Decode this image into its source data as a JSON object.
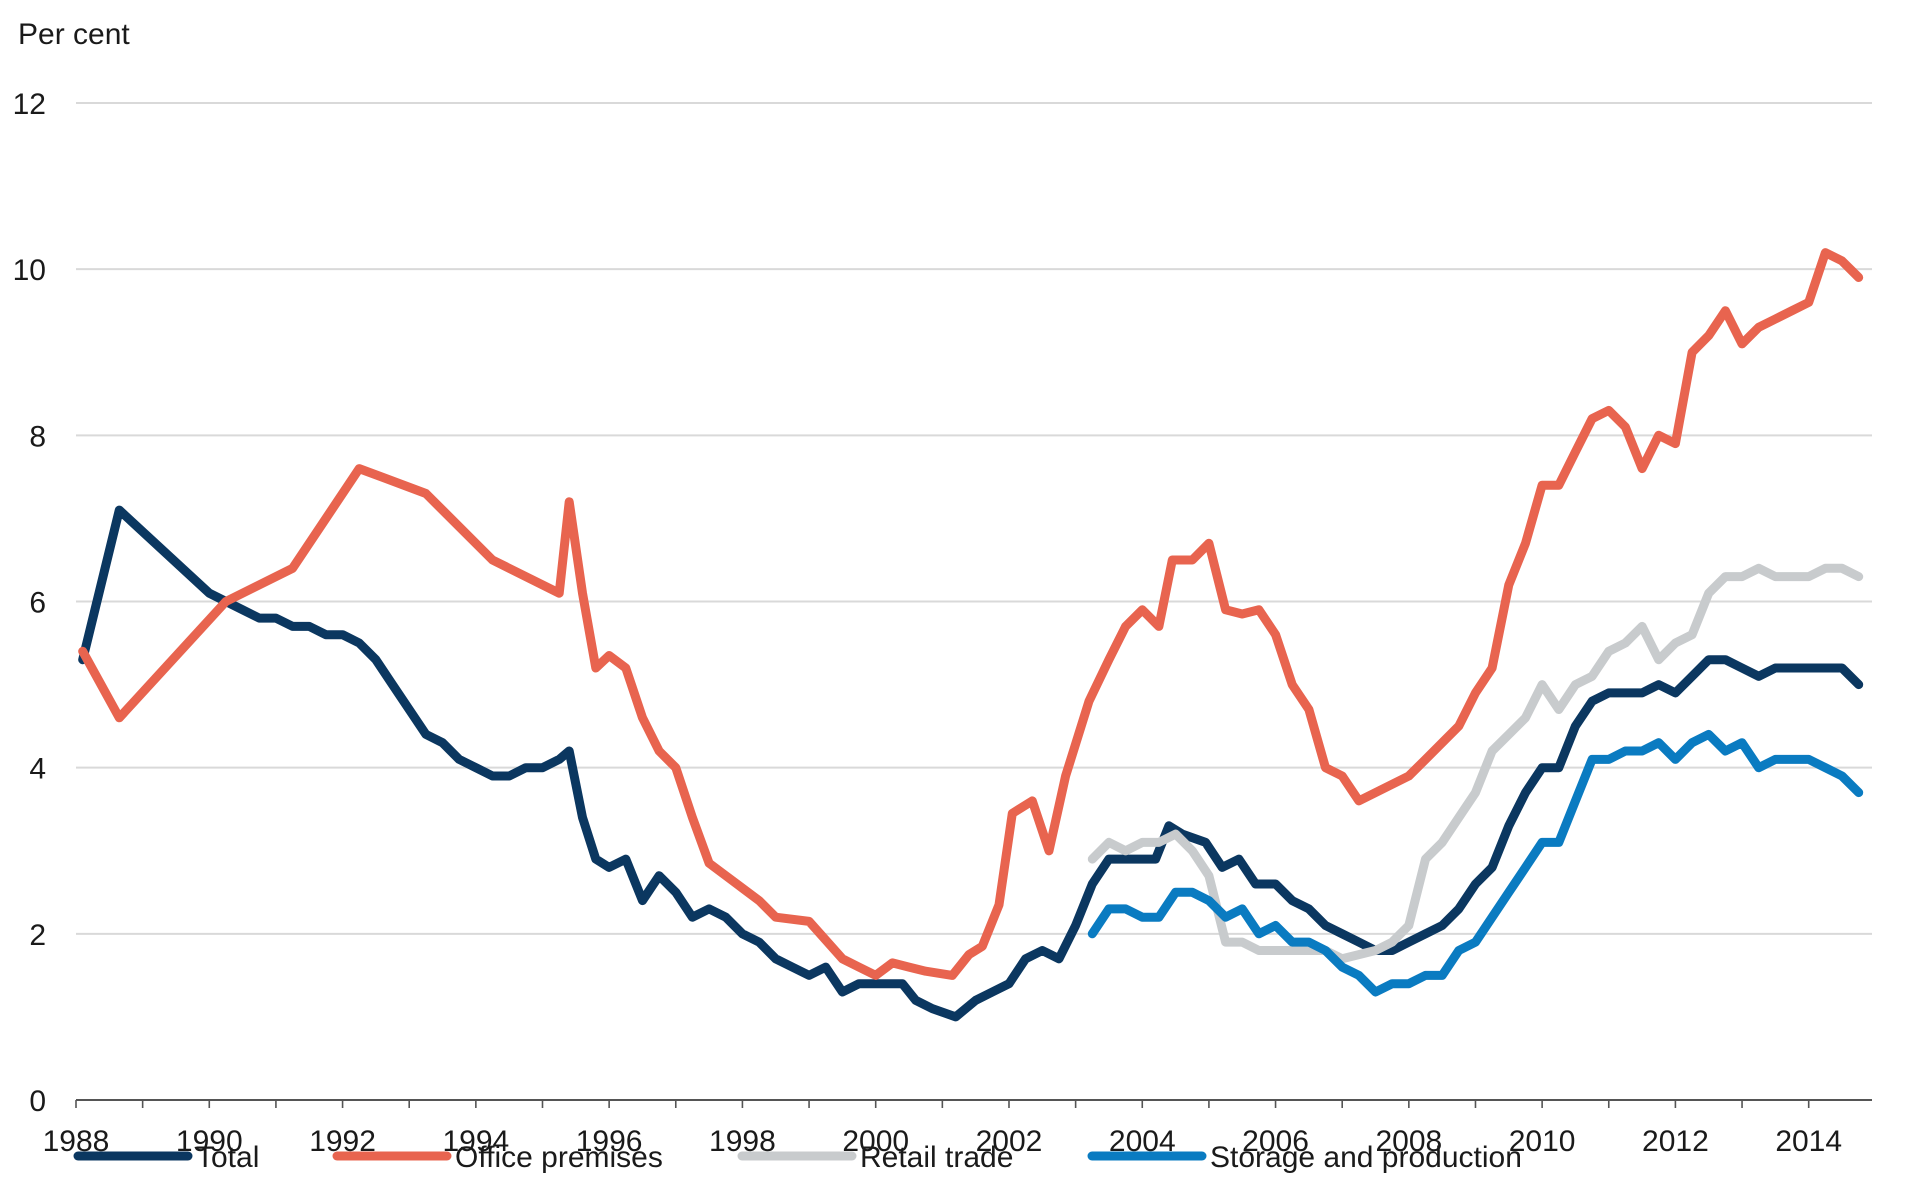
{
  "chart_data": {
    "type": "line",
    "title": "",
    "ylabel": "Per cent",
    "xlabel": "",
    "ylim": [
      0,
      12
    ],
    "xlim": [
      1988,
      2014.8
    ],
    "yticks": [
      "0",
      "2",
      "4",
      "6",
      "8",
      "10",
      "12"
    ],
    "xticks": [
      "1988",
      "1990",
      "1992",
      "1994",
      "1996",
      "1998",
      "2000",
      "2002",
      "2004",
      "2006",
      "2008",
      "2010",
      "2012",
      "2014"
    ],
    "grid": true,
    "legend_position": "bottom",
    "series": [
      {
        "name": "Total",
        "color": "#0b3760",
        "points": [
          [
            1988.1,
            5.3
          ],
          [
            1988.65,
            7.1
          ],
          [
            1990.0,
            6.1
          ],
          [
            1990.5,
            5.9
          ],
          [
            1990.75,
            5.8
          ],
          [
            1991.0,
            5.8
          ],
          [
            1991.25,
            5.7
          ],
          [
            1991.5,
            5.7
          ],
          [
            1991.75,
            5.6
          ],
          [
            1992.0,
            5.6
          ],
          [
            1992.25,
            5.5
          ],
          [
            1992.5,
            5.3
          ],
          [
            1992.75,
            5.0
          ],
          [
            1993.0,
            4.7
          ],
          [
            1993.25,
            4.4
          ],
          [
            1993.5,
            4.3
          ],
          [
            1993.75,
            4.1
          ],
          [
            1994.0,
            4.0
          ],
          [
            1994.25,
            3.9
          ],
          [
            1994.5,
            3.9
          ],
          [
            1994.75,
            4.0
          ],
          [
            1995.0,
            4.0
          ],
          [
            1995.25,
            4.1
          ],
          [
            1995.4,
            4.2
          ],
          [
            1995.6,
            3.4
          ],
          [
            1995.8,
            2.9
          ],
          [
            1996.0,
            2.8
          ],
          [
            1996.25,
            2.9
          ],
          [
            1996.5,
            2.4
          ],
          [
            1996.75,
            2.7
          ],
          [
            1997.0,
            2.5
          ],
          [
            1997.25,
            2.2
          ],
          [
            1997.5,
            2.3
          ],
          [
            1997.75,
            2.2
          ],
          [
            1998.0,
            2.0
          ],
          [
            1998.25,
            1.9
          ],
          [
            1998.5,
            1.7
          ],
          [
            1998.75,
            1.6
          ],
          [
            1999.0,
            1.5
          ],
          [
            1999.25,
            1.6
          ],
          [
            1999.5,
            1.3
          ],
          [
            1999.75,
            1.4
          ],
          [
            2000.0,
            1.4
          ],
          [
            2000.4,
            1.4
          ],
          [
            2000.6,
            1.2
          ],
          [
            2000.85,
            1.1
          ],
          [
            2001.2,
            1.0
          ],
          [
            2001.5,
            1.2
          ],
          [
            2001.75,
            1.3
          ],
          [
            2002.0,
            1.4
          ],
          [
            2002.25,
            1.7
          ],
          [
            2002.5,
            1.8
          ],
          [
            2002.75,
            1.7
          ],
          [
            2003.0,
            2.1
          ],
          [
            2003.25,
            2.6
          ],
          [
            2003.5,
            2.9
          ],
          [
            2003.75,
            2.9
          ],
          [
            2004.0,
            2.9
          ],
          [
            2004.2,
            2.9
          ],
          [
            2004.4,
            3.3
          ],
          [
            2004.6,
            3.2
          ],
          [
            2004.95,
            3.1
          ],
          [
            2005.2,
            2.8
          ],
          [
            2005.45,
            2.9
          ],
          [
            2005.7,
            2.6
          ],
          [
            2006.0,
            2.6
          ],
          [
            2006.25,
            2.4
          ],
          [
            2006.5,
            2.3
          ],
          [
            2006.75,
            2.1
          ],
          [
            2007.0,
            2.0
          ],
          [
            2007.25,
            1.9
          ],
          [
            2007.5,
            1.8
          ],
          [
            2007.75,
            1.8
          ],
          [
            2008.0,
            1.9
          ],
          [
            2008.25,
            2.0
          ],
          [
            2008.5,
            2.1
          ],
          [
            2008.75,
            2.3
          ],
          [
            2009.0,
            2.6
          ],
          [
            2009.25,
            2.8
          ],
          [
            2009.5,
            3.3
          ],
          [
            2009.75,
            3.7
          ],
          [
            2010.0,
            4.0
          ],
          [
            2010.25,
            4.0
          ],
          [
            2010.5,
            4.5
          ],
          [
            2010.75,
            4.8
          ],
          [
            2011.0,
            4.9
          ],
          [
            2011.25,
            4.9
          ],
          [
            2011.5,
            4.9
          ],
          [
            2011.75,
            5.0
          ],
          [
            2012.0,
            4.9
          ],
          [
            2012.25,
            5.1
          ],
          [
            2012.5,
            5.3
          ],
          [
            2012.75,
            5.3
          ],
          [
            2013.0,
            5.2
          ],
          [
            2013.25,
            5.1
          ],
          [
            2013.5,
            5.2
          ],
          [
            2013.75,
            5.2
          ],
          [
            2014.0,
            5.2
          ],
          [
            2014.25,
            5.2
          ],
          [
            2014.5,
            5.2
          ],
          [
            2014.75,
            5.0
          ]
        ]
      },
      {
        "name": "Office premises",
        "color": "#e8644f",
        "points": [
          [
            1988.1,
            5.4
          ],
          [
            1988.65,
            4.6
          ],
          [
            1990.25,
            6.0
          ],
          [
            1991.25,
            6.4
          ],
          [
            1992.25,
            7.6
          ],
          [
            1993.25,
            7.3
          ],
          [
            1994.25,
            6.5
          ],
          [
            1995.25,
            6.1
          ],
          [
            1995.4,
            7.2
          ],
          [
            1995.6,
            6.1
          ],
          [
            1995.8,
            5.2
          ],
          [
            1996.0,
            5.35
          ],
          [
            1996.25,
            5.2
          ],
          [
            1996.5,
            4.6
          ],
          [
            1996.75,
            4.2
          ],
          [
            1997.0,
            4.0
          ],
          [
            1997.25,
            3.4
          ],
          [
            1997.5,
            2.85
          ],
          [
            1997.75,
            2.7
          ],
          [
            1998.0,
            2.55
          ],
          [
            1998.25,
            2.4
          ],
          [
            1998.5,
            2.2
          ],
          [
            1999.0,
            2.15
          ],
          [
            1999.5,
            1.7
          ],
          [
            1999.75,
            1.6
          ],
          [
            2000.0,
            1.5
          ],
          [
            2000.25,
            1.65
          ],
          [
            2000.5,
            1.6
          ],
          [
            2000.75,
            1.55
          ],
          [
            2001.15,
            1.5
          ],
          [
            2001.4,
            1.75
          ],
          [
            2001.6,
            1.85
          ],
          [
            2001.85,
            2.35
          ],
          [
            2002.05,
            3.45
          ],
          [
            2002.35,
            3.6
          ],
          [
            2002.6,
            3.0
          ],
          [
            2002.85,
            3.9
          ],
          [
            2003.2,
            4.8
          ],
          [
            2003.5,
            5.3
          ],
          [
            2003.75,
            5.7
          ],
          [
            2004.0,
            5.9
          ],
          [
            2004.25,
            5.7
          ],
          [
            2004.45,
            6.5
          ],
          [
            2004.75,
            6.5
          ],
          [
            2005.0,
            6.7
          ],
          [
            2005.25,
            5.9
          ],
          [
            2005.5,
            5.85
          ],
          [
            2005.75,
            5.9
          ],
          [
            2006.0,
            5.6
          ],
          [
            2006.25,
            5.0
          ],
          [
            2006.5,
            4.7
          ],
          [
            2006.75,
            4.0
          ],
          [
            2007.0,
            3.9
          ],
          [
            2007.25,
            3.6
          ],
          [
            2008.0,
            3.9
          ],
          [
            2008.25,
            4.1
          ],
          [
            2008.5,
            4.3
          ],
          [
            2008.75,
            4.5
          ],
          [
            2009.0,
            4.9
          ],
          [
            2009.25,
            5.2
          ],
          [
            2009.5,
            6.2
          ],
          [
            2009.75,
            6.7
          ],
          [
            2010.0,
            7.4
          ],
          [
            2010.25,
            7.4
          ],
          [
            2010.5,
            7.8
          ],
          [
            2010.75,
            8.2
          ],
          [
            2011.0,
            8.3
          ],
          [
            2011.25,
            8.1
          ],
          [
            2011.5,
            7.6
          ],
          [
            2011.75,
            8.0
          ],
          [
            2012.0,
            7.9
          ],
          [
            2012.25,
            9.0
          ],
          [
            2012.5,
            9.2
          ],
          [
            2012.75,
            9.5
          ],
          [
            2013.0,
            9.1
          ],
          [
            2013.25,
            9.3
          ],
          [
            2013.5,
            9.4
          ],
          [
            2013.75,
            9.5
          ],
          [
            2014.0,
            9.6
          ],
          [
            2014.25,
            10.2
          ],
          [
            2014.5,
            10.1
          ],
          [
            2014.75,
            9.9
          ]
        ]
      },
      {
        "name": "Retail trade",
        "color": "#c8cbcd",
        "points": [
          [
            2003.25,
            2.9
          ],
          [
            2003.5,
            3.1
          ],
          [
            2003.75,
            3.0
          ],
          [
            2004.0,
            3.1
          ],
          [
            2004.25,
            3.1
          ],
          [
            2004.5,
            3.2
          ],
          [
            2004.75,
            3.0
          ],
          [
            2005.0,
            2.7
          ],
          [
            2005.25,
            1.9
          ],
          [
            2005.5,
            1.9
          ],
          [
            2005.75,
            1.8
          ],
          [
            2006.0,
            1.8
          ],
          [
            2006.5,
            1.8
          ],
          [
            2006.75,
            1.8
          ],
          [
            2007.0,
            1.7
          ],
          [
            2007.25,
            1.75
          ],
          [
            2007.5,
            1.8
          ],
          [
            2007.75,
            1.9
          ],
          [
            2008.0,
            2.1
          ],
          [
            2008.25,
            2.9
          ],
          [
            2008.5,
            3.1
          ],
          [
            2008.75,
            3.4
          ],
          [
            2009.0,
            3.7
          ],
          [
            2009.25,
            4.2
          ],
          [
            2009.5,
            4.4
          ],
          [
            2009.75,
            4.6
          ],
          [
            2010.0,
            5.0
          ],
          [
            2010.25,
            4.7
          ],
          [
            2010.5,
            5.0
          ],
          [
            2010.75,
            5.1
          ],
          [
            2011.0,
            5.4
          ],
          [
            2011.25,
            5.5
          ],
          [
            2011.5,
            5.7
          ],
          [
            2011.75,
            5.3
          ],
          [
            2012.0,
            5.5
          ],
          [
            2012.25,
            5.6
          ],
          [
            2012.5,
            6.1
          ],
          [
            2012.75,
            6.3
          ],
          [
            2013.0,
            6.3
          ],
          [
            2013.25,
            6.4
          ],
          [
            2013.5,
            6.3
          ],
          [
            2013.75,
            6.3
          ],
          [
            2014.0,
            6.3
          ],
          [
            2014.25,
            6.4
          ],
          [
            2014.5,
            6.4
          ],
          [
            2014.75,
            6.3
          ]
        ]
      },
      {
        "name": "Storage and production",
        "color": "#0a7bc1",
        "points": [
          [
            2003.25,
            2.0
          ],
          [
            2003.5,
            2.3
          ],
          [
            2003.75,
            2.3
          ],
          [
            2004.0,
            2.2
          ],
          [
            2004.25,
            2.2
          ],
          [
            2004.5,
            2.5
          ],
          [
            2004.75,
            2.5
          ],
          [
            2005.0,
            2.4
          ],
          [
            2005.25,
            2.2
          ],
          [
            2005.5,
            2.3
          ],
          [
            2005.75,
            2.0
          ],
          [
            2006.0,
            2.1
          ],
          [
            2006.25,
            1.9
          ],
          [
            2006.5,
            1.9
          ],
          [
            2006.75,
            1.8
          ],
          [
            2007.0,
            1.6
          ],
          [
            2007.25,
            1.5
          ],
          [
            2007.5,
            1.3
          ],
          [
            2007.75,
            1.4
          ],
          [
            2008.0,
            1.4
          ],
          [
            2008.25,
            1.5
          ],
          [
            2008.5,
            1.5
          ],
          [
            2008.75,
            1.8
          ],
          [
            2009.0,
            1.9
          ],
          [
            2009.25,
            2.2
          ],
          [
            2009.5,
            2.5
          ],
          [
            2009.75,
            2.8
          ],
          [
            2010.0,
            3.1
          ],
          [
            2010.25,
            3.1
          ],
          [
            2010.5,
            3.6
          ],
          [
            2010.75,
            4.1
          ],
          [
            2011.0,
            4.1
          ],
          [
            2011.25,
            4.2
          ],
          [
            2011.5,
            4.2
          ],
          [
            2011.75,
            4.3
          ],
          [
            2012.0,
            4.1
          ],
          [
            2012.25,
            4.3
          ],
          [
            2012.5,
            4.4
          ],
          [
            2012.75,
            4.2
          ],
          [
            2013.0,
            4.3
          ],
          [
            2013.25,
            4.0
          ],
          [
            2013.5,
            4.1
          ],
          [
            2013.75,
            4.1
          ],
          [
            2014.0,
            4.1
          ],
          [
            2014.25,
            4.0
          ],
          [
            2014.5,
            3.9
          ],
          [
            2014.75,
            3.7
          ]
        ]
      }
    ]
  }
}
